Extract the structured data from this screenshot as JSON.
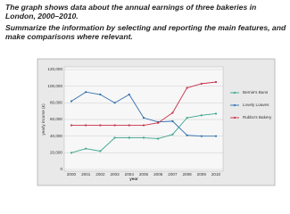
{
  "task": {
    "description": "The graph shows data about the annual earnings of three bakeries in London, 2000–2010.",
    "instruction": "Summarize the information by selecting and reporting the main features, and make comparisons where relevant."
  },
  "chart_data": {
    "type": "line",
    "x_label": "year",
    "y_label": "yearly income (£)",
    "categories": [
      "2000",
      "2001",
      "2002",
      "2003",
      "2004",
      "2005",
      "2006",
      "2007",
      "2008",
      "2009",
      "2010"
    ],
    "series": [
      {
        "name": "Bernie's Buns",
        "color": "#3aa58c",
        "values": [
          20000,
          25000,
          22000,
          38000,
          38000,
          38000,
          37000,
          42000,
          62000,
          65000,
          67000
        ]
      },
      {
        "name": "Lovely Loaves",
        "color": "#2f6fb0",
        "values": [
          82000,
          93000,
          90000,
          80000,
          90000,
          62000,
          57000,
          58000,
          41000,
          40000,
          40000
        ]
      },
      {
        "name": "Rubbo's Bakery",
        "color": "#c8324a",
        "values": [
          53000,
          53000,
          53000,
          53000,
          53000,
          53000,
          56000,
          68000,
          98000,
          103000,
          105000
        ]
      }
    ],
    "ylim": [
      0,
      120000
    ],
    "yticks": [
      0,
      {
        "value": 20000,
        "label": "20,000"
      },
      {
        "value": 40000,
        "label": "40,000"
      },
      {
        "value": 60000,
        "label": "60,000"
      },
      {
        "value": 80000,
        "label": "80,000"
      },
      {
        "value": 100000,
        "label": "100,000"
      },
      {
        "value": 120000,
        "label": "120,000"
      }
    ],
    "grid": true
  }
}
